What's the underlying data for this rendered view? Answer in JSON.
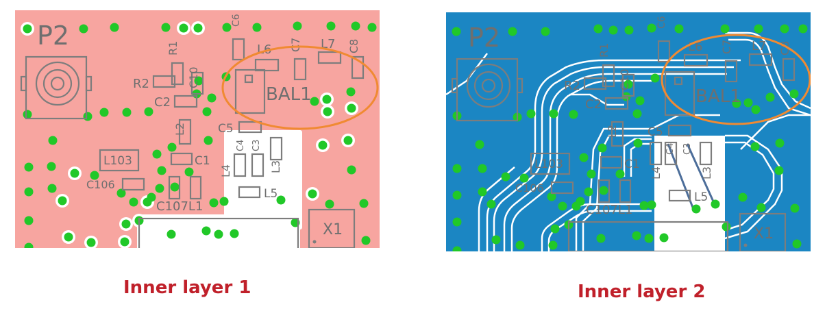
{
  "colors": {
    "layer1_fill": "#f7a5a0",
    "layer2_fill": "#1b86c3",
    "pad": "#21c828",
    "ring": "#ffffff",
    "silkscreen": "#7d7d7d",
    "highlight": "#f08a32",
    "caption": "#c0202a"
  },
  "panels": [
    {
      "caption": "Inner layer 1",
      "labels": {
        "p2": "P2",
        "r1": "R1",
        "r2": "R2",
        "c10": "C10",
        "c2": "C2",
        "l6": "L6",
        "c7": "C7",
        "l7": "L7",
        "c8": "C8",
        "c6": "C6",
        "bal1": "BAL1",
        "c5": "C5",
        "c4": "C4",
        "c3": "C3",
        "l2": "L2",
        "c1": "C1",
        "l4": "L4",
        "l3": "L3",
        "l5": "L5",
        "l103": "L103",
        "c106": "C106",
        "c107l1": "C107L1",
        "x1": "X1"
      }
    },
    {
      "caption": "Inner layer 2",
      "labels": {
        "p2": "P2",
        "r1": "R1",
        "r2": "R2",
        "c10": "C10",
        "c2": "C2",
        "l6": "L6",
        "c7": "C7",
        "l7": "L7",
        "c8": "C8",
        "c6": "C6",
        "bal1": "BAL1",
        "c5": "C5",
        "c4": "C4",
        "c3": "C3",
        "l2": "L2",
        "c1": "C1",
        "l4": "L4",
        "l3": "L3",
        "l5": "L5",
        "l103": "L103",
        "c106": "C106",
        "c107l1": "C107L1",
        "x1": "X1"
      }
    }
  ]
}
